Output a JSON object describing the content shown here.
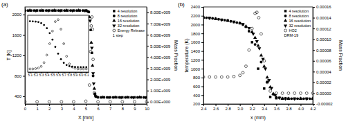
{
  "chart_data": [
    {
      "type": "scatter",
      "title": "(a)",
      "x_label": "X [mm]",
      "y_label": "T [K]",
      "y2_label": "Mass Fraction",
      "xlim": [
        0,
        10
      ],
      "xticks": [
        0,
        1,
        2,
        3,
        4,
        5,
        6,
        7,
        8,
        9,
        10
      ],
      "ylim": [
        250,
        2150
      ],
      "yticks": [
        400,
        800,
        1200,
        1600,
        2000
      ],
      "y2lim": [
        -200000000,
        8500000000
      ],
      "y2ticks": [
        {
          "value": 0,
          "label": "0.00E+000"
        },
        {
          "value": 1000000000,
          "label": "1.00E+009"
        },
        {
          "value": 2000000000,
          "label": "2.00E+009"
        },
        {
          "value": 3000000000,
          "label": "3.00E+009"
        },
        {
          "value": 4000000000,
          "label": "4.00E+009"
        },
        {
          "value": 5000000000,
          "label": "5.00E+009"
        },
        {
          "value": 6000000000,
          "label": "6.00E+009"
        },
        {
          "value": 7000000000,
          "label": "7.00E+009"
        },
        {
          "value": 8000000000,
          "label": "8.00E+009"
        }
      ],
      "legend": "upper-right",
      "annotations": [
        "1 step"
      ],
      "series": [
        {
          "name": "4 resolution",
          "color": "#000000",
          "marker": "square",
          "x": [
            0,
            0.5,
            1,
            1.5,
            2,
            2.5,
            3,
            3.5,
            4,
            4.5,
            5,
            5.25,
            5.5,
            5.75,
            6,
            6.5,
            7,
            7.5,
            8,
            8.5,
            9,
            9.5,
            10
          ],
          "values": [
            2080,
            2080,
            2080,
            2080,
            2080,
            2080,
            2080,
            2080,
            2080,
            2080,
            2080,
            2050,
            1250,
            450,
            380,
            380,
            380,
            380,
            380,
            380,
            380,
            380,
            380
          ]
        },
        {
          "name": "8 resolution",
          "color": "#000000",
          "marker": "circle",
          "x": [
            0.25,
            0.75,
            1.25,
            1.75,
            2.25,
            2.75,
            3.25,
            3.75,
            4.25,
            4.75,
            5.2,
            5.4,
            5.6,
            5.8,
            6.25,
            6.75,
            7.25,
            7.75,
            8.25,
            8.75,
            9.25,
            9.75
          ],
          "values": [
            2080,
            2080,
            2080,
            2080,
            2080,
            2080,
            2080,
            2080,
            2080,
            2080,
            2060,
            1700,
            800,
            400,
            380,
            380,
            380,
            380,
            380,
            380,
            380,
            380
          ]
        },
        {
          "name": "16 resolution",
          "color": "#000000",
          "marker": "triangle",
          "x": [
            0.4,
            1.4,
            2.4,
            3.4,
            4.4,
            5.1,
            5.3,
            5.45,
            5.55,
            5.7,
            5.9,
            6.4,
            7.4,
            8.4,
            9.4
          ],
          "values": [
            2080,
            2080,
            2080,
            2080,
            2080,
            2070,
            1950,
            1450,
            1000,
            550,
            390,
            380,
            380,
            380,
            380
          ]
        },
        {
          "name": "32 resolution",
          "color": "#000000",
          "marker": "triangle-down",
          "x": [
            0.9,
            1.9,
            2.9,
            3.9,
            4.9,
            5.35,
            5.5,
            5.6,
            5.65,
            5.75,
            6.9,
            7.9,
            8.9,
            9.9
          ],
          "values": [
            2080,
            2080,
            2080,
            2080,
            2080,
            1880,
            1350,
            850,
            650,
            430,
            380,
            380,
            380,
            380
          ]
        },
        {
          "name": "Energy Release",
          "color": "#000000",
          "marker": "circle-open",
          "axis": "y2",
          "x": [
            0,
            1,
            2,
            3,
            4,
            5,
            5.3,
            5.4,
            5.45,
            5.5,
            5.55,
            5.6,
            5.7,
            6,
            7,
            8,
            9,
            10
          ],
          "values": [
            0,
            0,
            0,
            0,
            0,
            50000000,
            1500000000,
            4500000000,
            6800000000,
            7600000000,
            6500000000,
            3800000000,
            800000000,
            0,
            0,
            0,
            0,
            0
          ]
        }
      ]
    },
    {
      "type": "scatter",
      "xlim": [
        5.06,
        6.14
      ],
      "xticks": [
        5.1,
        5.2,
        5.3,
        5.4,
        5.5,
        5.6,
        5.7,
        5.8,
        5.9,
        {
          "value": 6,
          "label": "6.0"
        },
        6.1
      ],
      "ylim": [
        200,
        2300
      ],
      "y2lim": [
        -500000000,
        8500000000
      ],
      "tick_labels": "x",
      "series": [
        {
          "color": "#000000",
          "marker": "circle",
          "x": [
            5.1,
            5.15,
            5.2,
            5.25,
            5.3,
            5.35,
            5.4,
            5.45,
            5.5,
            5.55,
            5.6,
            5.65,
            5.7,
            5.75,
            5.8,
            5.85,
            5.9,
            5.95,
            6,
            6.05,
            6.1
          ],
          "values": [
            2080,
            2075,
            2065,
            2050,
            2010,
            1940,
            1820,
            1640,
            1400,
            1130,
            880,
            680,
            540,
            460,
            420,
            400,
            390,
            385,
            382,
            380,
            380
          ]
        },
        {
          "color": "#000000",
          "marker": "circle-open",
          "axis": "y2",
          "x": [
            5.1,
            5.15,
            5.2,
            5.25,
            5.3,
            5.35,
            5.4,
            5.45,
            5.5,
            5.55,
            5.6,
            5.65,
            5.7,
            5.75,
            5.8,
            5.85,
            5.9,
            5.95,
            6,
            6.05,
            6.1
          ],
          "values": [
            0,
            0,
            50000000,
            150000000,
            400000000,
            1000000000,
            2200000000,
            4000000000,
            6000000000,
            7500000000,
            7800000000,
            6300000000,
            4000000000,
            2000000000,
            800000000,
            300000000,
            100000000,
            0,
            0,
            0,
            0
          ]
        }
      ]
    },
    {
      "type": "scatter",
      "title": "(b)",
      "x_label": "x (mm)",
      "y_label": "temperature (K)",
      "y2_label": "Mass Fraction",
      "xlim": [
        2.4,
        4.2
      ],
      "xticks": [
        2.4,
        2.6,
        2.8,
        {
          "value": 3,
          "label": "3.0"
        },
        3.2,
        3.4,
        3.6,
        3.8,
        {
          "value": 4,
          "label": "4.0"
        },
        4.2
      ],
      "ylim": [
        200,
        2400
      ],
      "yticks": [
        200,
        400,
        600,
        800,
        1000,
        1200,
        1400,
        1600,
        1800,
        2000,
        2200,
        2400
      ],
      "y2lim": [
        -2e-05,
        0.00016
      ],
      "y2ticks": [
        {
          "value": -2e-05,
          "label": "-0.00002"
        },
        {
          "value": 0,
          "label": "0.00000"
        },
        {
          "value": 2e-05,
          "label": "0.00002"
        },
        {
          "value": 4e-05,
          "label": "0.00004"
        },
        {
          "value": 6e-05,
          "label": "0.00006"
        },
        {
          "value": 8e-05,
          "label": "0.00008"
        },
        {
          "value": 0.0001,
          "label": "0.00010"
        },
        {
          "value": 0.00012,
          "label": "0.00012"
        },
        {
          "value": 0.00014,
          "label": "0.00014"
        },
        {
          "value": 0.00016,
          "label": "0.00016"
        }
      ],
      "legend": "upper-right",
      "annotations": [
        "DRM-19"
      ],
      "series": [
        {
          "name": "4 resolution",
          "color": "#000000",
          "marker": "square",
          "x": [
            2.4,
            2.5,
            2.6,
            2.7,
            2.8,
            2.9,
            3.0,
            3.1,
            3.2,
            3.3,
            3.4,
            3.5,
            3.6,
            3.7,
            3.8,
            3.9,
            4.0,
            4.1,
            4.2
          ],
          "values": [
            2160,
            2150,
            2130,
            2110,
            2090,
            2060,
            2030,
            1950,
            1600,
            1000,
            550,
            360,
            330,
            320,
            320,
            320,
            320,
            320,
            320
          ]
        },
        {
          "name": "8 resolution",
          "color": "#000000",
          "marker": "circle",
          "x": [
            2.45,
            2.55,
            2.65,
            2.75,
            2.85,
            2.95,
            3.05,
            3.15,
            3.25,
            3.35,
            3.45,
            3.55,
            3.65,
            3.75,
            3.85,
            3.95,
            4.05,
            4.15
          ],
          "values": [
            2155,
            2140,
            2120,
            2100,
            2075,
            2045,
            2000,
            1850,
            1550,
            1150,
            700,
            420,
            340,
            325,
            320,
            320,
            320,
            320
          ]
        },
        {
          "name": "16 resolution",
          "color": "#000000",
          "marker": "triangle",
          "x": [
            2.4,
            2.6,
            2.8,
            3.0,
            3.1,
            3.2,
            3.25,
            3.3,
            3.35,
            3.4,
            3.45,
            3.5,
            3.55,
            3.6,
            3.7,
            3.8,
            4.0,
            4.2
          ],
          "values": [
            2160,
            2130,
            2090,
            2030,
            1960,
            1830,
            1700,
            1520,
            1300,
            1050,
            800,
            580,
            430,
            350,
            320,
            320,
            320,
            320
          ]
        },
        {
          "name": "32 resolution",
          "color": "#000000",
          "marker": "triangle-down",
          "x": [
            2.5,
            2.7,
            2.9,
            3.05,
            3.15,
            3.22,
            3.28,
            3.32,
            3.38,
            3.42,
            3.48,
            3.52,
            3.58,
            3.65,
            3.75,
            3.9,
            4.1
          ],
          "values": [
            2150,
            2110,
            2065,
            2010,
            1920,
            1790,
            1620,
            1460,
            1220,
            1000,
            740,
            560,
            400,
            340,
            320,
            320,
            320
          ]
        },
        {
          "name": "HO2",
          "color": "#000000",
          "marker": "circle-open",
          "axis": "y2",
          "x": [
            2.4,
            2.5,
            2.6,
            2.7,
            2.8,
            2.9,
            3.0,
            3.05,
            3.1,
            3.15,
            3.2,
            3.25,
            3.28,
            3.31,
            3.35,
            3.4,
            3.45,
            3.5,
            3.6,
            3.7,
            3.8,
            3.9,
            4.0,
            4.1,
            4.2
          ],
          "values": [
            3e-05,
            3e-05,
            3e-05,
            3e-05,
            3e-05,
            3.1e-05,
            3.3e-05,
            3.8e-05,
            5e-05,
            8e-05,
            0.00012,
            0.000148,
            0.00015,
            0.00014,
            0.00011,
            6e-05,
            2e-05,
            4e-06,
            0,
            0,
            0,
            0,
            0,
            0,
            0
          ]
        }
      ]
    }
  ]
}
